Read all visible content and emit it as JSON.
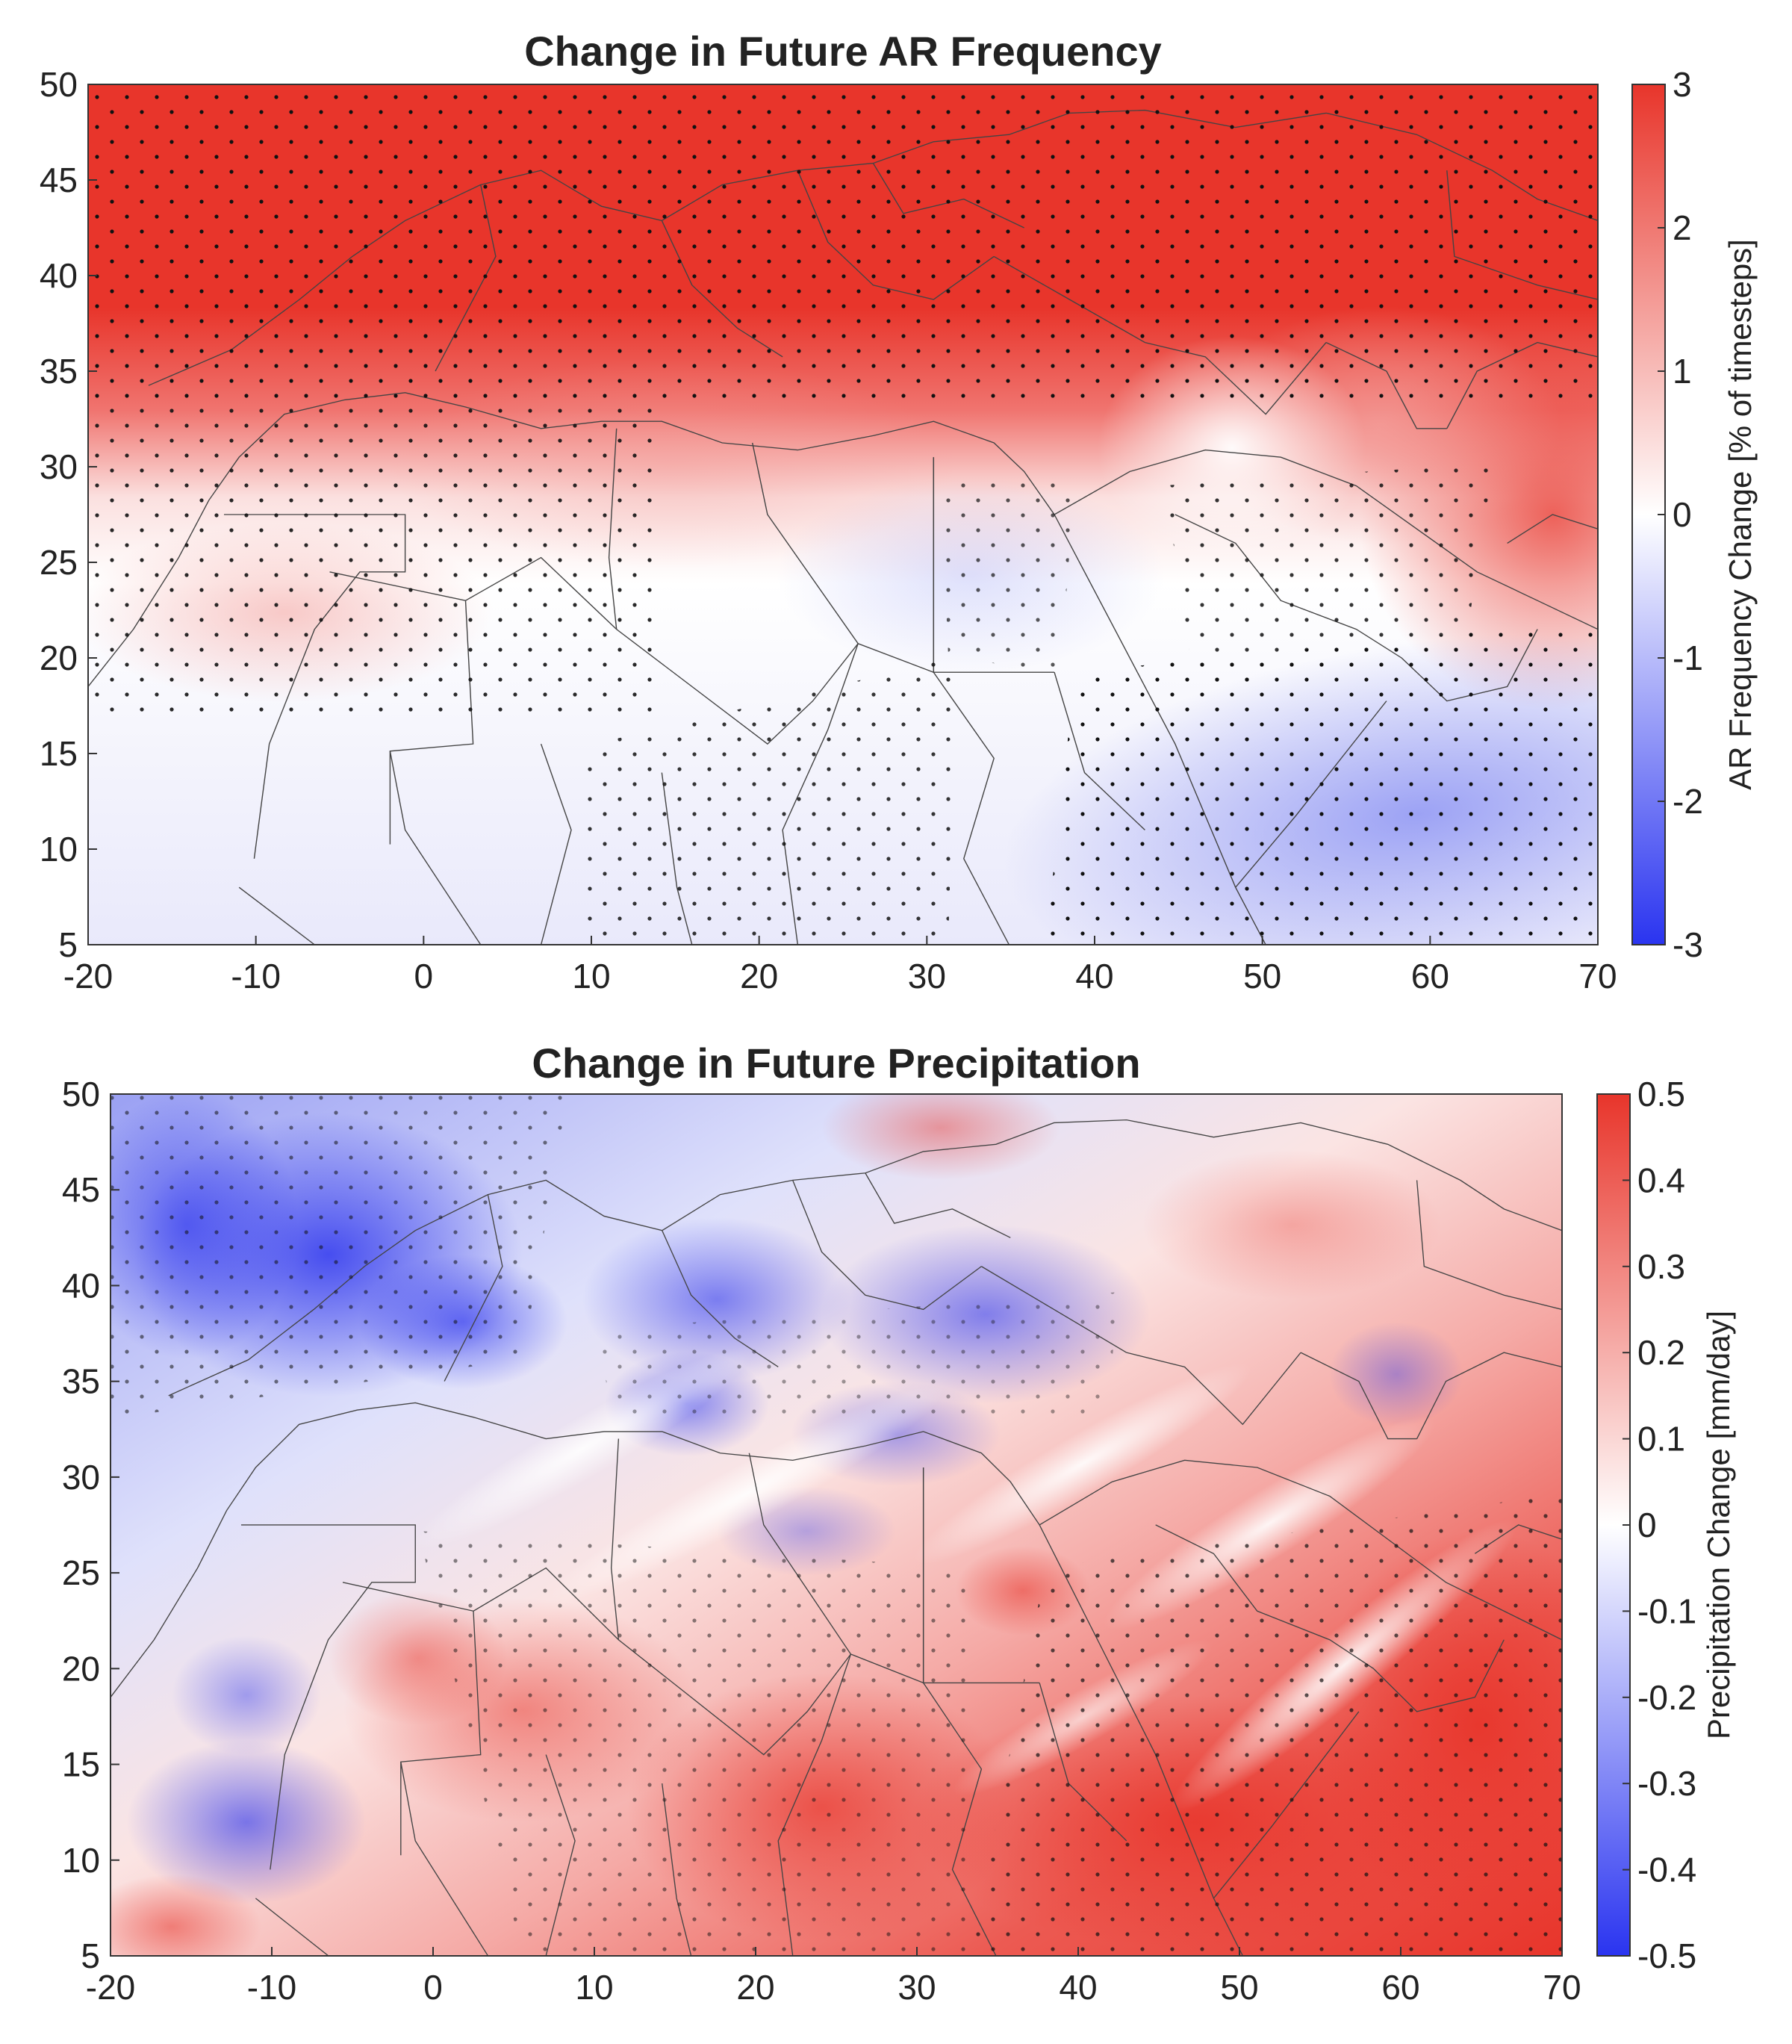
{
  "panels": [
    {
      "id": "ar",
      "title": "Change in Future AR Frequency",
      "xticks": [
        "-20",
        "-10",
        "0",
        "10",
        "20",
        "30",
        "40",
        "50",
        "60",
        "70"
      ],
      "yticks": [
        "5",
        "10",
        "15",
        "20",
        "25",
        "30",
        "35",
        "40",
        "45",
        "50"
      ],
      "colorbar": {
        "label": "AR Frequency Change [% of timesteps]",
        "ticks": [
          "3",
          "2",
          "1",
          "0",
          "-1",
          "-2",
          "-3"
        ],
        "range": [
          -3,
          3
        ],
        "colors": {
          "max": "#e8352b",
          "mid": "#ffffff",
          "min": "#2a34f0"
        }
      }
    },
    {
      "id": "pr",
      "title": "Change in Future Precipitation",
      "xticks": [
        "-20",
        "-10",
        "0",
        "10",
        "20",
        "30",
        "40",
        "50",
        "60",
        "70"
      ],
      "yticks": [
        "5",
        "10",
        "15",
        "20",
        "25",
        "30",
        "35",
        "40",
        "45",
        "50"
      ],
      "colorbar": {
        "label": "Precipitation Change [mm/day]",
        "ticks": [
          "0.5",
          "0.4",
          "0.3",
          "0.2",
          "0.1",
          "0",
          "-0.1",
          "-0.2",
          "-0.3",
          "-0.4",
          "-0.5"
        ],
        "range": [
          -0.5,
          0.5
        ],
        "colors": {
          "max": "#e8352b",
          "mid": "#ffffff",
          "min": "#2a34f0"
        }
      }
    }
  ]
}
